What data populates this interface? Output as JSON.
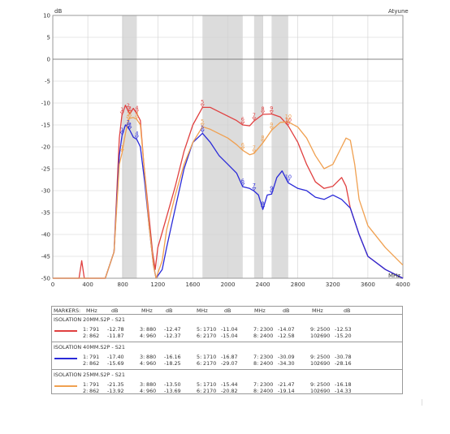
{
  "chart_data": {
    "type": "line",
    "title": "",
    "xlabel": "",
    "ylabel": "",
    "x_unit": "MHz",
    "y_unit": "dB",
    "top_right_label": "Atyune",
    "xlim": [
      0,
      4000
    ],
    "ylim": [
      -50,
      10
    ],
    "x_ticks": [
      "0",
      "400",
      "800",
      "1200",
      "1600",
      "2000",
      "2400",
      "2800",
      "3200",
      "3600",
      "4000"
    ],
    "y_ticks": [
      "10",
      "5",
      "0",
      "-5",
      "-10",
      "-15",
      "-20",
      "-25",
      "-30",
      "-35",
      "-40",
      "-45",
      "-50"
    ],
    "grid": true,
    "shaded_bands": [
      [
        791,
        960
      ],
      [
        1710,
        2170
      ],
      [
        2300,
        2400
      ],
      [
        2500,
        2690
      ]
    ],
    "series": [
      {
        "name": "ISOLATION 20MM.S2P - S21",
        "color": "#e04040",
        "points": [
          [
            0,
            -50
          ],
          [
            300,
            -50
          ],
          [
            330,
            -46
          ],
          [
            360,
            -50
          ],
          [
            600,
            -50
          ],
          [
            700,
            -44
          ],
          [
            760,
            -18
          ],
          [
            790,
            -12.8
          ],
          [
            830,
            -10.5
          ],
          [
            862,
            -11.9
          ],
          [
            880,
            -12.5
          ],
          [
            920,
            -11.2
          ],
          [
            960,
            -12.4
          ],
          [
            1000,
            -14
          ],
          [
            1040,
            -24
          ],
          [
            1100,
            -36
          ],
          [
            1140,
            -44
          ],
          [
            1170,
            -48
          ],
          [
            1200,
            -43
          ],
          [
            1300,
            -36
          ],
          [
            1400,
            -29
          ],
          [
            1500,
            -21
          ],
          [
            1600,
            -15
          ],
          [
            1710,
            -11
          ],
          [
            1800,
            -11
          ],
          [
            1900,
            -12
          ],
          [
            2000,
            -13
          ],
          [
            2100,
            -14
          ],
          [
            2170,
            -15
          ],
          [
            2250,
            -15.2
          ],
          [
            2300,
            -14.1
          ],
          [
            2400,
            -12.6
          ],
          [
            2500,
            -12.5
          ],
          [
            2600,
            -13.2
          ],
          [
            2690,
            -15.2
          ],
          [
            2800,
            -19
          ],
          [
            2900,
            -24
          ],
          [
            3000,
            -28
          ],
          [
            3100,
            -29.5
          ],
          [
            3200,
            -29
          ],
          [
            3300,
            -27
          ],
          [
            3350,
            -29
          ],
          [
            3400,
            -34
          ],
          [
            3500,
            -40
          ],
          [
            3600,
            -45
          ],
          [
            3800,
            -48
          ],
          [
            4000,
            -50
          ]
        ]
      },
      {
        "name": "ISOLATION 40MM.S2P - S21",
        "color": "#2a2ad8",
        "points": [
          [
            0,
            -50
          ],
          [
            600,
            -50
          ],
          [
            700,
            -44
          ],
          [
            760,
            -22
          ],
          [
            791,
            -17.4
          ],
          [
            830,
            -15
          ],
          [
            862,
            -15.7
          ],
          [
            880,
            -16.2
          ],
          [
            920,
            -17.8
          ],
          [
            960,
            -18.3
          ],
          [
            1000,
            -20
          ],
          [
            1050,
            -28
          ],
          [
            1100,
            -38
          ],
          [
            1150,
            -47
          ],
          [
            1180,
            -50
          ],
          [
            1250,
            -48
          ],
          [
            1300,
            -43
          ],
          [
            1400,
            -34
          ],
          [
            1500,
            -25
          ],
          [
            1600,
            -19
          ],
          [
            1710,
            -16.9
          ],
          [
            1800,
            -19
          ],
          [
            1900,
            -22
          ],
          [
            2000,
            -24
          ],
          [
            2100,
            -26
          ],
          [
            2170,
            -29.1
          ],
          [
            2250,
            -29.5
          ],
          [
            2300,
            -30.1
          ],
          [
            2350,
            -31
          ],
          [
            2400,
            -34.3
          ],
          [
            2450,
            -31
          ],
          [
            2500,
            -30.8
          ],
          [
            2560,
            -27
          ],
          [
            2620,
            -25.5
          ],
          [
            2690,
            -28.2
          ],
          [
            2800,
            -29.5
          ],
          [
            2900,
            -30
          ],
          [
            3000,
            -31.5
          ],
          [
            3100,
            -32
          ],
          [
            3200,
            -31
          ],
          [
            3300,
            -32
          ],
          [
            3350,
            -33
          ],
          [
            3400,
            -34
          ],
          [
            3500,
            -40
          ],
          [
            3600,
            -45
          ],
          [
            3800,
            -48
          ],
          [
            4000,
            -50
          ]
        ]
      },
      {
        "name": "ISOLATION 25MM.S2P - S21",
        "color": "#f0a050",
        "points": [
          [
            0,
            -50
          ],
          [
            600,
            -50
          ],
          [
            700,
            -44
          ],
          [
            760,
            -24
          ],
          [
            791,
            -21.4
          ],
          [
            830,
            -17
          ],
          [
            862,
            -13.9
          ],
          [
            880,
            -13.5
          ],
          [
            920,
            -13.3
          ],
          [
            960,
            -13.7
          ],
          [
            1000,
            -15
          ],
          [
            1050,
            -26
          ],
          [
            1100,
            -38
          ],
          [
            1150,
            -47
          ],
          [
            1180,
            -50
          ],
          [
            1250,
            -46
          ],
          [
            1300,
            -39
          ],
          [
            1400,
            -31
          ],
          [
            1500,
            -24
          ],
          [
            1600,
            -19
          ],
          [
            1710,
            -15.4
          ],
          [
            1800,
            -16
          ],
          [
            1900,
            -17
          ],
          [
            2000,
            -18
          ],
          [
            2100,
            -19.5
          ],
          [
            2170,
            -20.8
          ],
          [
            2250,
            -21.8
          ],
          [
            2300,
            -21.5
          ],
          [
            2400,
            -19.1
          ],
          [
            2500,
            -16.2
          ],
          [
            2600,
            -14.4
          ],
          [
            2690,
            -14.3
          ],
          [
            2800,
            -15.5
          ],
          [
            2900,
            -18
          ],
          [
            3000,
            -22
          ],
          [
            3100,
            -25
          ],
          [
            3200,
            -24
          ],
          [
            3300,
            -20
          ],
          [
            3350,
            -18
          ],
          [
            3400,
            -18.5
          ],
          [
            3450,
            -24
          ],
          [
            3500,
            -32
          ],
          [
            3600,
            -38
          ],
          [
            3800,
            -43
          ],
          [
            4000,
            -47
          ]
        ]
      }
    ],
    "plot_markers": [
      {
        "series": 0,
        "labels": [
          [
            "1",
            791,
            -12.78
          ],
          [
            "2",
            862,
            -11.87
          ],
          [
            "3",
            880,
            -12.47
          ],
          [
            "4",
            960,
            -12.37
          ],
          [
            "5",
            1710,
            -11.04
          ],
          [
            "6",
            2170,
            -15.04
          ],
          [
            "7",
            2300,
            -14.07
          ],
          [
            "8",
            2400,
            -12.58
          ],
          [
            "9",
            2500,
            -12.53
          ],
          [
            "10",
            2690,
            -15.2
          ]
        ]
      },
      {
        "series": 1,
        "labels": [
          [
            "1",
            791,
            -17.4
          ],
          [
            "2",
            862,
            -15.69
          ],
          [
            "3",
            880,
            -16.16
          ],
          [
            "4",
            960,
            -18.25
          ],
          [
            "5",
            1710,
            -16.87
          ],
          [
            "6",
            2170,
            -29.07
          ],
          [
            "7",
            2300,
            -30.09
          ],
          [
            "8",
            2400,
            -34.3
          ],
          [
            "9",
            2500,
            -30.78
          ],
          [
            "10",
            2690,
            -28.16
          ]
        ]
      },
      {
        "series": 2,
        "labels": [
          [
            "1",
            791,
            -21.35
          ],
          [
            "2",
            862,
            -13.92
          ],
          [
            "3",
            880,
            -13.5
          ],
          [
            "4",
            960,
            -13.69
          ],
          [
            "5",
            1710,
            -15.44
          ],
          [
            "6",
            2170,
            -20.82
          ],
          [
            "7",
            2300,
            -21.47
          ],
          [
            "8",
            2400,
            -19.14
          ],
          [
            "9",
            2500,
            -16.18
          ],
          [
            "10",
            2690,
            -14.33
          ]
        ]
      }
    ]
  },
  "markers_table": {
    "header": [
      "MARKERS:",
      "MHz",
      "dB",
      "MHz",
      "dB",
      "MHz",
      "dB",
      "MHz",
      "dB",
      "MHz",
      "dB"
    ],
    "sections": [
      {
        "name": "ISOLATION 20MM.S2P - S21",
        "color": "#e04040",
        "row1": [
          "1:",
          "791",
          "-12.78",
          "3:",
          "880",
          "-12.47",
          "5:",
          "1710",
          "-11.04",
          "7:",
          "2300",
          "-14.07",
          "9:",
          "2500",
          "-12.53"
        ],
        "row2": [
          "2:",
          "862",
          "-11.87",
          "4:",
          "960",
          "-12.37",
          "6:",
          "2170",
          "-15.04",
          "8:",
          "2400",
          "-12.58",
          "10:",
          "2690",
          "-15.20"
        ]
      },
      {
        "name": "ISOLATION 40MM.S2P - S21",
        "color": "#2a2ad8",
        "row1": [
          "1:",
          "791",
          "-17.40",
          "3:",
          "880",
          "-16.16",
          "5:",
          "1710",
          "-16.87",
          "7:",
          "2300",
          "-30.09",
          "9:",
          "2500",
          "-30.78"
        ],
        "row2": [
          "2:",
          "862",
          "-15.69",
          "4:",
          "960",
          "-18.25",
          "6:",
          "2170",
          "-29.07",
          "8:",
          "2400",
          "-34.30",
          "10:",
          "2690",
          "-28.16"
        ]
      },
      {
        "name": "ISOLATION 25MM.S2P - S21",
        "color": "#f0a050",
        "row1": [
          "1:",
          "791",
          "-21.35",
          "3:",
          "880",
          "-13.50",
          "5:",
          "1710",
          "-15.44",
          "7:",
          "2300",
          "-21.47",
          "9:",
          "2500",
          "-16.18"
        ],
        "row2": [
          "2:",
          "862",
          "-13.92",
          "4:",
          "960",
          "-13.69",
          "6:",
          "2170",
          "-20.82",
          "8:",
          "2400",
          "-19.14",
          "10:",
          "2690",
          "-14.33"
        ]
      }
    ]
  }
}
